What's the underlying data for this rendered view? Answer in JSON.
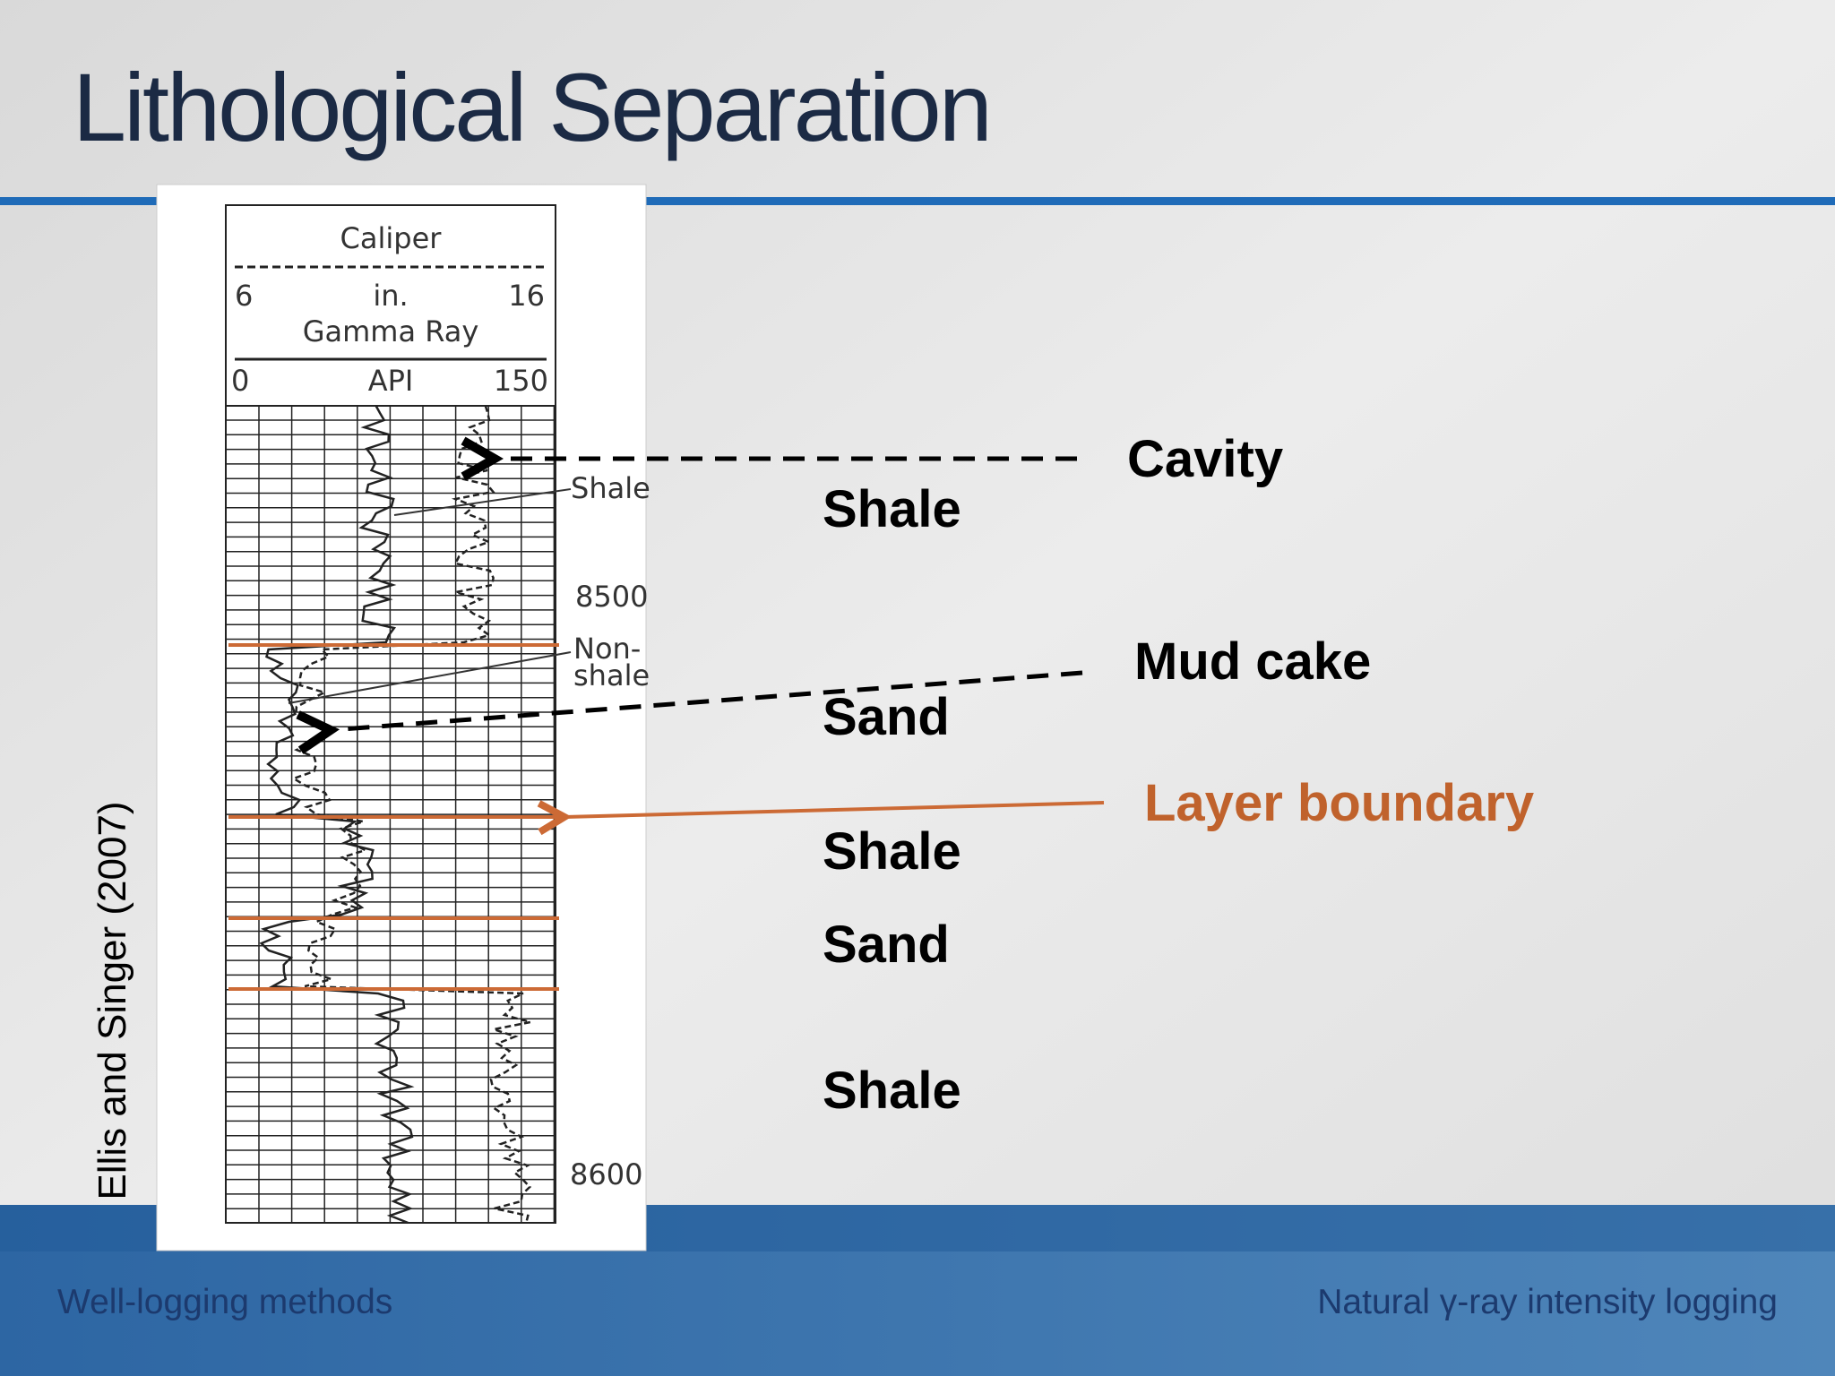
{
  "title": "Lithological Separation",
  "log": {
    "caliper": "Caliper",
    "caliper_min": "6",
    "caliper_unit": "in.",
    "caliper_max": "16",
    "gamma": "Gamma Ray",
    "gamma_min": "0",
    "gamma_unit": "API",
    "gamma_max": "150",
    "shale_note": "Shale",
    "depth_1": "8500",
    "nonshale_1": "Non-",
    "nonshale_2": "shale",
    "depth_2": "8600"
  },
  "labels": {
    "cavity": "Cavity",
    "mud_cake": "Mud cake",
    "layer_boundary": "Layer boundary"
  },
  "zones": [
    "Shale",
    "Sand",
    "Shale",
    "Sand",
    "Shale"
  ],
  "citation": "Ellis and Singer (2007)",
  "footer": {
    "left": "Well-logging methods",
    "right": "Natural γ-ray intensity logging"
  }
}
